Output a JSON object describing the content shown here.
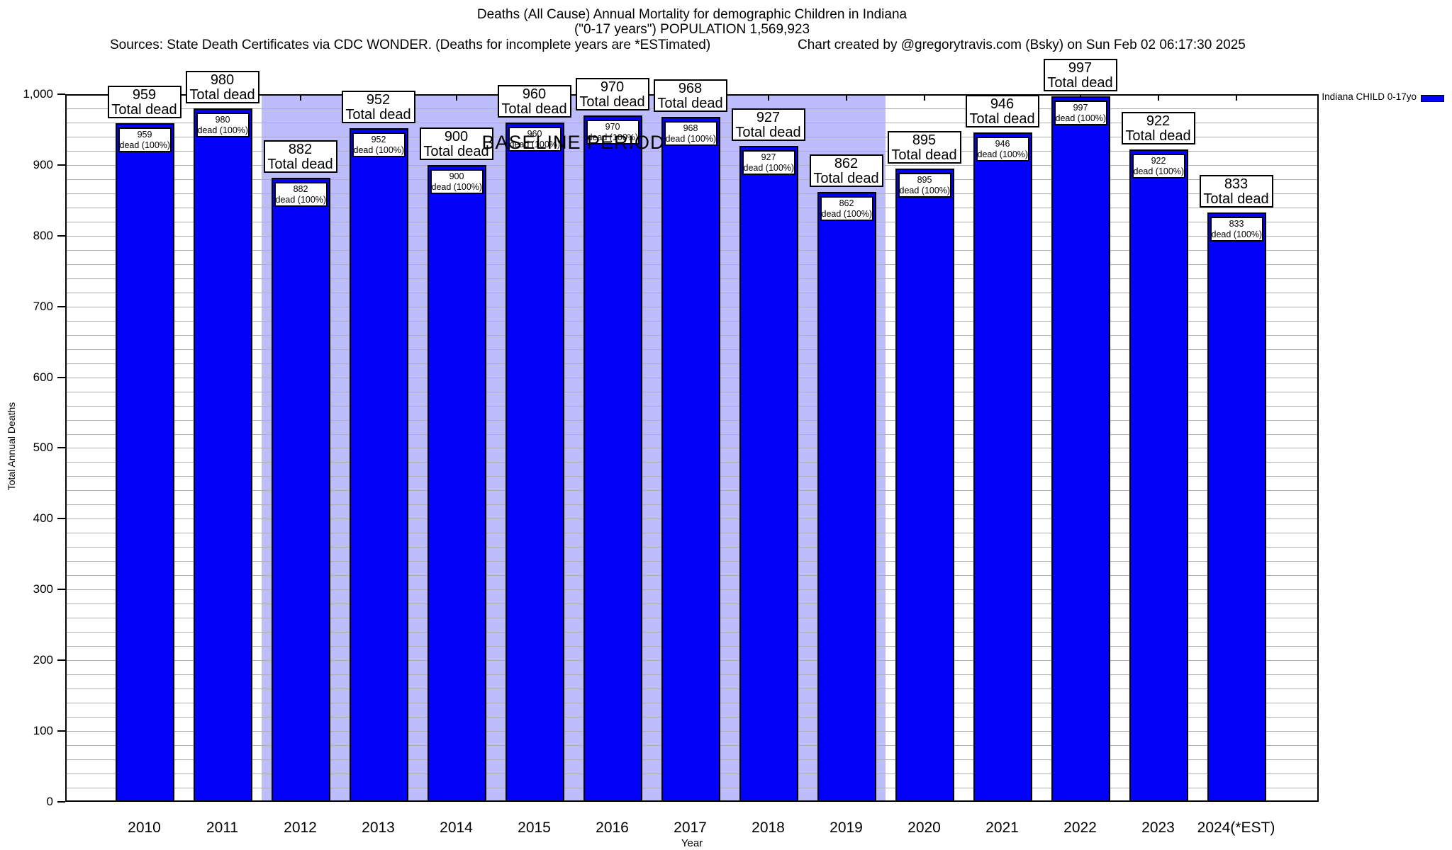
{
  "chart_data": {
    "type": "bar",
    "title": "Deaths (All Cause) Annual Mortality for demographic Children in Indiana",
    "subtitle": "(\"0-17 years\") POPULATION 1,569,923",
    "source_note": "Sources: State Death Certificates via CDC WONDER. (Deaths for incomplete years are *ESTimated)",
    "credit": "Chart created by @gregorytravis.com (Bsky) on Sun Feb 02 06:17:30 2025",
    "xlabel": "Year",
    "ylabel": "Total Annual Deaths",
    "ylim": [
      0,
      1000
    ],
    "ytick_step": 100,
    "minor_grid_step": 20,
    "ytick_labels": [
      "0",
      "100",
      "200",
      "300",
      "400",
      "500",
      "600",
      "700",
      "800",
      "900",
      "1,000"
    ],
    "categories": [
      "2010",
      "2011",
      "2012",
      "2013",
      "2014",
      "2015",
      "2016",
      "2017",
      "2018",
      "2019",
      "2020",
      "2021",
      "2022",
      "2023",
      "2024(*EST)"
    ],
    "values": [
      959,
      980,
      882,
      952,
      900,
      960,
      970,
      968,
      927,
      862,
      895,
      946,
      997,
      922,
      833
    ],
    "series_name": "Indiana CHILD 0-17yo",
    "bar_color": "#0202f8",
    "grid": true,
    "legend_position": "top-right",
    "annotation_top_suffix": "Total dead",
    "annotation_inner_suffix": "dead (100%)",
    "baseline_band": {
      "label": "BASELINE PERIOD",
      "from_category": "2012",
      "to_category": "2019",
      "color": "#bdbdfb"
    }
  }
}
